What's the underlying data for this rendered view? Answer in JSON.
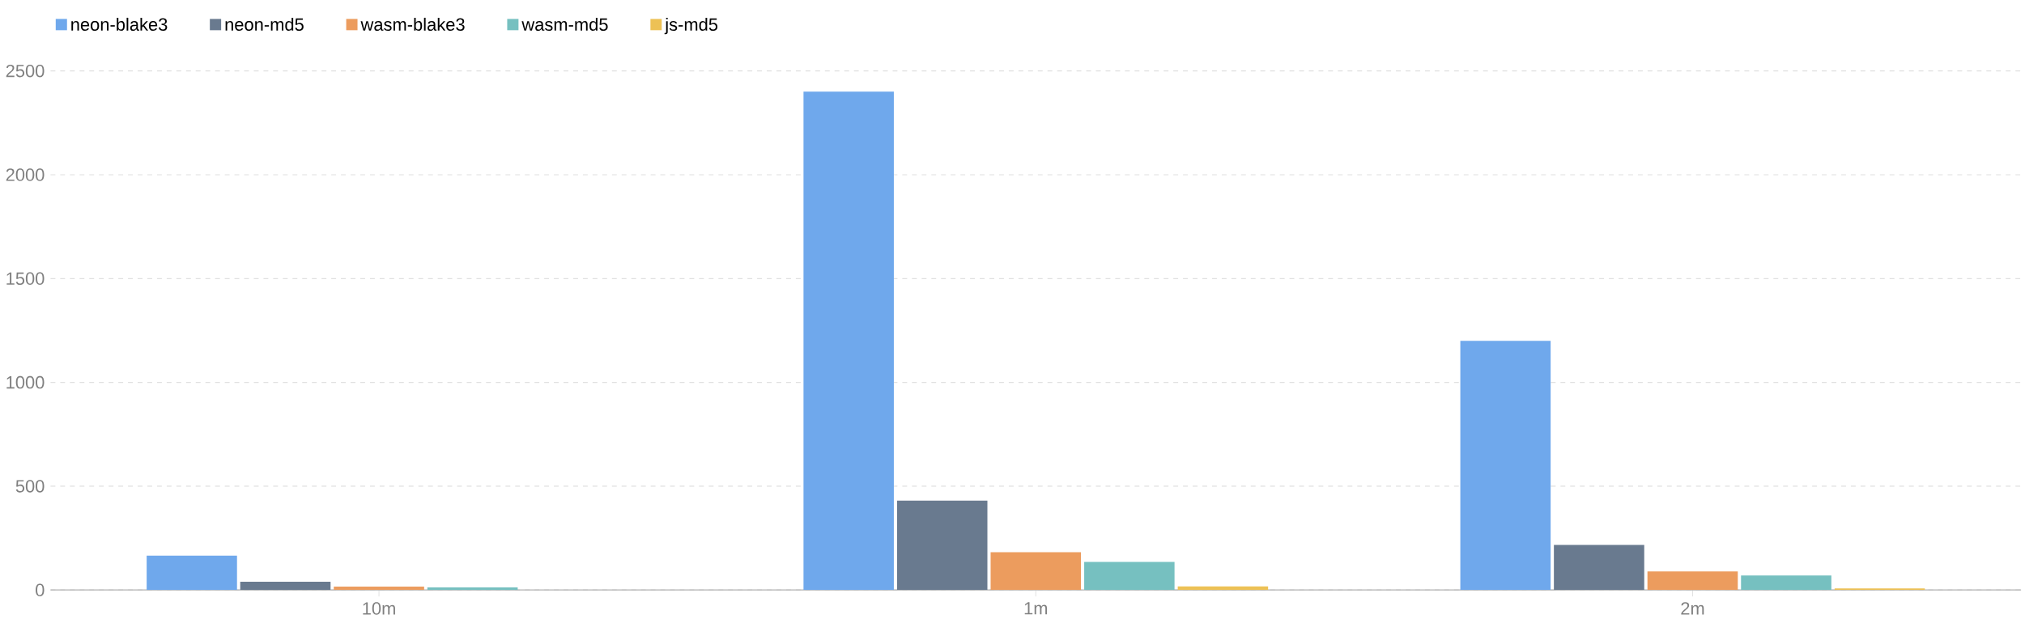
{
  "chart_data": {
    "type": "bar",
    "categories": [
      "10m",
      "1m",
      "2m"
    ],
    "series": [
      {
        "name": "neon-blake3",
        "color": "#6fa8ec",
        "values": [
          165,
          2400,
          1200
        ]
      },
      {
        "name": "neon-md5",
        "color": "#697a8f",
        "values": [
          40,
          430,
          217
        ]
      },
      {
        "name": "wasm-blake3",
        "color": "#ec9c5e",
        "values": [
          16,
          182,
          89
        ]
      },
      {
        "name": "wasm-md5",
        "color": "#76c0c0",
        "values": [
          12,
          135,
          70
        ]
      },
      {
        "name": "js-md5",
        "color": "#edc155",
        "values": [
          null,
          17,
          8
        ]
      }
    ],
    "ylim": [
      0,
      2500
    ],
    "yticks": [
      0,
      500,
      1000,
      1500,
      2000,
      2500
    ],
    "grid": "y",
    "legend": "top left"
  }
}
